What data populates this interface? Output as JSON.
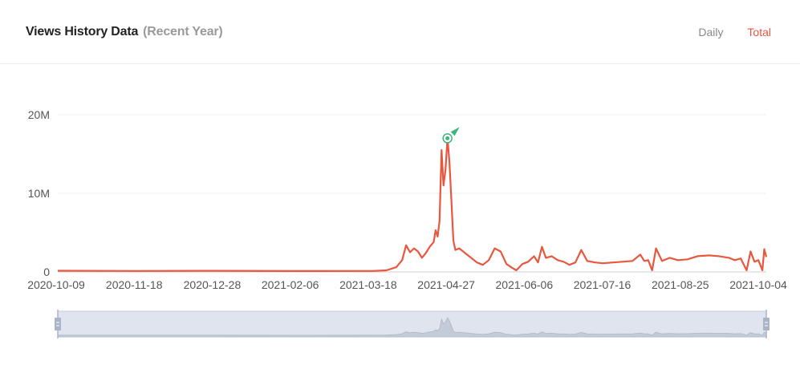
{
  "header": {
    "title": "Views History Data",
    "subtitle": "(Recent Year)",
    "toggle_daily": "Daily",
    "toggle_total": "Total",
    "active_toggle": "Total"
  },
  "colors": {
    "line": "#e8573e",
    "marker": "#3fb47f",
    "grid": "#ececec",
    "axis_text": "#555555",
    "inactive_toggle": "#888888",
    "slider_fill": "#dfe4ee",
    "slider_handle": "#a9b4c8"
  },
  "chart_data": {
    "type": "line",
    "title": "Views History Data",
    "subtitle": "(Recent Year)",
    "ylim": [
      0,
      20000000
    ],
    "y_ticks": [
      0,
      10000000,
      20000000
    ],
    "y_tick_labels": [
      "0",
      "10M",
      "20M"
    ],
    "x_start": "2020-10-09",
    "x_end": "2021-10-04",
    "x_tick_labels": [
      "2020-10-09",
      "2020-11-18",
      "2020-12-28",
      "2021-02-06",
      "2021-03-18",
      "2021-04-27",
      "2021-06-06",
      "2021-07-16",
      "2021-08-25",
      "2021-10-04"
    ],
    "grid": true,
    "series": [
      {
        "points": [
          [
            "2020-10-09",
            150000
          ],
          [
            "2020-11-18",
            120000
          ],
          [
            "2020-12-28",
            140000
          ],
          [
            "2021-02-06",
            110000
          ],
          [
            "2021-03-18",
            120000
          ],
          [
            "2021-03-25",
            200000
          ],
          [
            "2021-03-30",
            600000
          ],
          [
            "2021-04-02",
            1500000
          ],
          [
            "2021-04-04",
            3400000
          ],
          [
            "2021-04-06",
            2500000
          ],
          [
            "2021-04-08",
            3000000
          ],
          [
            "2021-04-10",
            2600000
          ],
          [
            "2021-04-12",
            1800000
          ],
          [
            "2021-04-14",
            2400000
          ],
          [
            "2021-04-16",
            3200000
          ],
          [
            "2021-04-18",
            3800000
          ],
          [
            "2021-04-19",
            5300000
          ],
          [
            "2021-04-20",
            4500000
          ],
          [
            "2021-04-21",
            6500000
          ],
          [
            "2021-04-22",
            15500000
          ],
          [
            "2021-04-23",
            11000000
          ],
          [
            "2021-04-24",
            13000000
          ],
          [
            "2021-04-25",
            17000000
          ],
          [
            "2021-04-26",
            14000000
          ],
          [
            "2021-04-27",
            9000000
          ],
          [
            "2021-04-28",
            4000000
          ],
          [
            "2021-04-29",
            2800000
          ],
          [
            "2021-05-01",
            3000000
          ],
          [
            "2021-05-04",
            2400000
          ],
          [
            "2021-05-07",
            1800000
          ],
          [
            "2021-05-10",
            1200000
          ],
          [
            "2021-05-13",
            900000
          ],
          [
            "2021-05-16",
            1500000
          ],
          [
            "2021-05-19",
            3000000
          ],
          [
            "2021-05-22",
            2600000
          ],
          [
            "2021-05-25",
            1000000
          ],
          [
            "2021-05-28",
            500000
          ],
          [
            "2021-05-30",
            200000
          ],
          [
            "2021-06-02",
            1000000
          ],
          [
            "2021-06-05",
            1300000
          ],
          [
            "2021-06-08",
            2000000
          ],
          [
            "2021-06-10",
            1200000
          ],
          [
            "2021-06-12",
            3200000
          ],
          [
            "2021-06-14",
            1800000
          ],
          [
            "2021-06-17",
            2000000
          ],
          [
            "2021-06-20",
            1500000
          ],
          [
            "2021-06-23",
            1300000
          ],
          [
            "2021-06-26",
            900000
          ],
          [
            "2021-06-29",
            1200000
          ],
          [
            "2021-07-02",
            2800000
          ],
          [
            "2021-07-05",
            1400000
          ],
          [
            "2021-07-09",
            1200000
          ],
          [
            "2021-07-13",
            1100000
          ],
          [
            "2021-07-18",
            1200000
          ],
          [
            "2021-07-23",
            1300000
          ],
          [
            "2021-07-28",
            1400000
          ],
          [
            "2021-08-01",
            2200000
          ],
          [
            "2021-08-03",
            1400000
          ],
          [
            "2021-08-05",
            1500000
          ],
          [
            "2021-08-07",
            200000
          ],
          [
            "2021-08-09",
            3000000
          ],
          [
            "2021-08-12",
            1400000
          ],
          [
            "2021-08-16",
            1800000
          ],
          [
            "2021-08-20",
            1500000
          ],
          [
            "2021-08-25",
            1600000
          ],
          [
            "2021-08-30",
            2000000
          ],
          [
            "2021-09-05",
            2100000
          ],
          [
            "2021-09-10",
            2000000
          ],
          [
            "2021-09-15",
            1800000
          ],
          [
            "2021-09-18",
            1500000
          ],
          [
            "2021-09-21",
            1700000
          ],
          [
            "2021-09-24",
            200000
          ],
          [
            "2021-09-26",
            2600000
          ],
          [
            "2021-09-28",
            1300000
          ],
          [
            "2021-09-30",
            1500000
          ],
          [
            "2021-10-02",
            200000
          ],
          [
            "2021-10-03",
            2900000
          ],
          [
            "2021-10-04",
            1900000
          ]
        ]
      }
    ],
    "peak_marker_date": "2021-04-25",
    "data_zoom": {
      "start_fraction": 0,
      "end_fraction": 1
    }
  }
}
